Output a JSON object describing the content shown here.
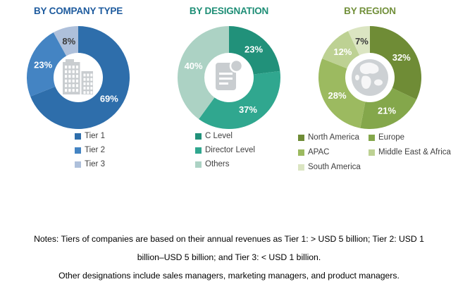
{
  "chart_data": [
    {
      "type": "donut",
      "title": "BY COMPANY TYPE",
      "title_color": "#1E5B9E",
      "center_icon": "building-icon",
      "legend_position": "bottom",
      "legend_columns": 1,
      "units": "%",
      "segments": [
        {
          "label": "Tier 1",
          "value": 69,
          "color": "#2E6EAB",
          "label_color": "#FFFFFF"
        },
        {
          "label": "Tier 2",
          "value": 23,
          "color": "#4484C3",
          "label_color": "#FFFFFF"
        },
        {
          "label": "Tier 3",
          "value": 8,
          "color": "#AEC0DB",
          "label_color": "#3B3B3B"
        }
      ]
    },
    {
      "type": "donut",
      "title": "BY DESIGNATION",
      "title_color": "#1E8E76",
      "center_icon": "document-icon",
      "legend_position": "bottom",
      "legend_columns": 1,
      "units": "%",
      "segments": [
        {
          "label": "C Level",
          "value": 23,
          "color": "#21917A",
          "label_color": "#FFFFFF"
        },
        {
          "label": "Director Level",
          "value": 37,
          "color": "#30A78F",
          "label_color": "#FFFFFF"
        },
        {
          "label": "Others",
          "value": 40,
          "color": "#ACD2C4",
          "label_color": "#FFFFFF"
        }
      ]
    },
    {
      "type": "donut",
      "title": "BY REGION",
      "title_color": "#72903B",
      "center_icon": "globe-icon",
      "legend_position": "bottom",
      "legend_columns": 2,
      "units": "%",
      "segments": [
        {
          "label": "North America",
          "value": 32,
          "color": "#6F8C36",
          "label_color": "#FFFFFF"
        },
        {
          "label": "Europe",
          "value": 21,
          "color": "#84A74B",
          "label_color": "#FFFFFF"
        },
        {
          "label": "APAC",
          "value": 28,
          "color": "#9CBA60",
          "label_color": "#FFFFFF"
        },
        {
          "label": "Middle East & Africa",
          "value": 12,
          "color": "#BDD193",
          "label_color": "#FFFFFF"
        },
        {
          "label": "South America",
          "value": 7,
          "color": "#DBE5C2",
          "label_color": "#3B3B3B"
        }
      ]
    }
  ],
  "notes": {
    "tiers": "Notes: Tiers of companies are based on their annual revenues as Tier 1: > USD 5 billion; Tier 2: USD 1 billion–USD 5 billion; and Tier 3: < USD 1 billion.",
    "designations": "Other designations include sales managers, marketing managers, and product managers."
  }
}
